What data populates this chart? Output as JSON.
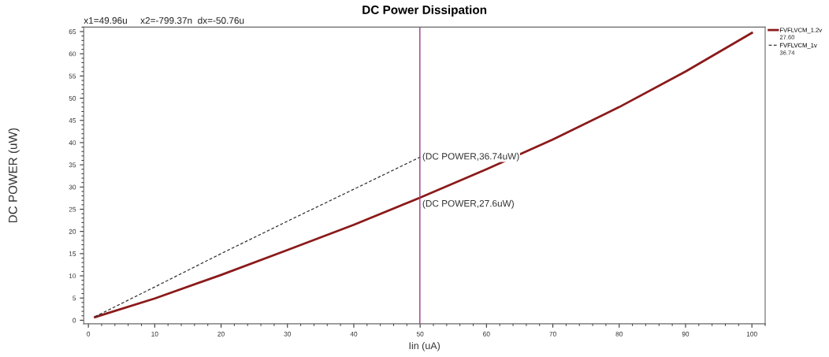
{
  "chart_data": {
    "type": "line",
    "title": "DC Power Dissipation",
    "xlabel": "Iin (uA)",
    "ylabel": "DC POWER (uW)",
    "xlim": [
      -0.7,
      102
    ],
    "ylim": [
      -0.8,
      66
    ],
    "xticks": [
      0,
      10,
      20,
      30,
      40,
      50,
      60,
      70,
      80,
      90,
      100
    ],
    "yticks": [
      0,
      5,
      10,
      15,
      20,
      25,
      30,
      35,
      40,
      45,
      50,
      55,
      60,
      65
    ],
    "series": [
      {
        "name": "FVFLVCM_1.2v",
        "color": "#8b1a1a",
        "line_style": "solid",
        "x": [
          1,
          10,
          20,
          30,
          40,
          50,
          60,
          70,
          80,
          90,
          100
        ],
        "values": [
          0.7,
          4.9,
          10.2,
          15.8,
          21.5,
          27.6,
          34.0,
          40.7,
          48.0,
          56.0,
          64.7
        ]
      },
      {
        "name": "FVFLVCM_1v",
        "color": "#333333",
        "line_style": "dashed",
        "x": [
          1,
          10,
          20,
          30,
          40,
          50
        ],
        "values": [
          0.8,
          7.5,
          15.0,
          22.3,
          29.5,
          36.74
        ]
      }
    ],
    "ref_lines": [
      {
        "axis": "x",
        "value": 49.96,
        "color": "#9b3a8a"
      }
    ],
    "annotations": [
      "x1=49.96u     x2=-799.37n  dx=-50.76u",
      "27.60",
      "36.74",
      {
        "text": "(DC POWER,36.74uW)",
        "x": 50,
        "y": 36.74
      },
      {
        "text": "(DC POWER,27.6uW)",
        "x": 50,
        "y": 27.6
      }
    ],
    "legend": "top right",
    "grid": false
  }
}
